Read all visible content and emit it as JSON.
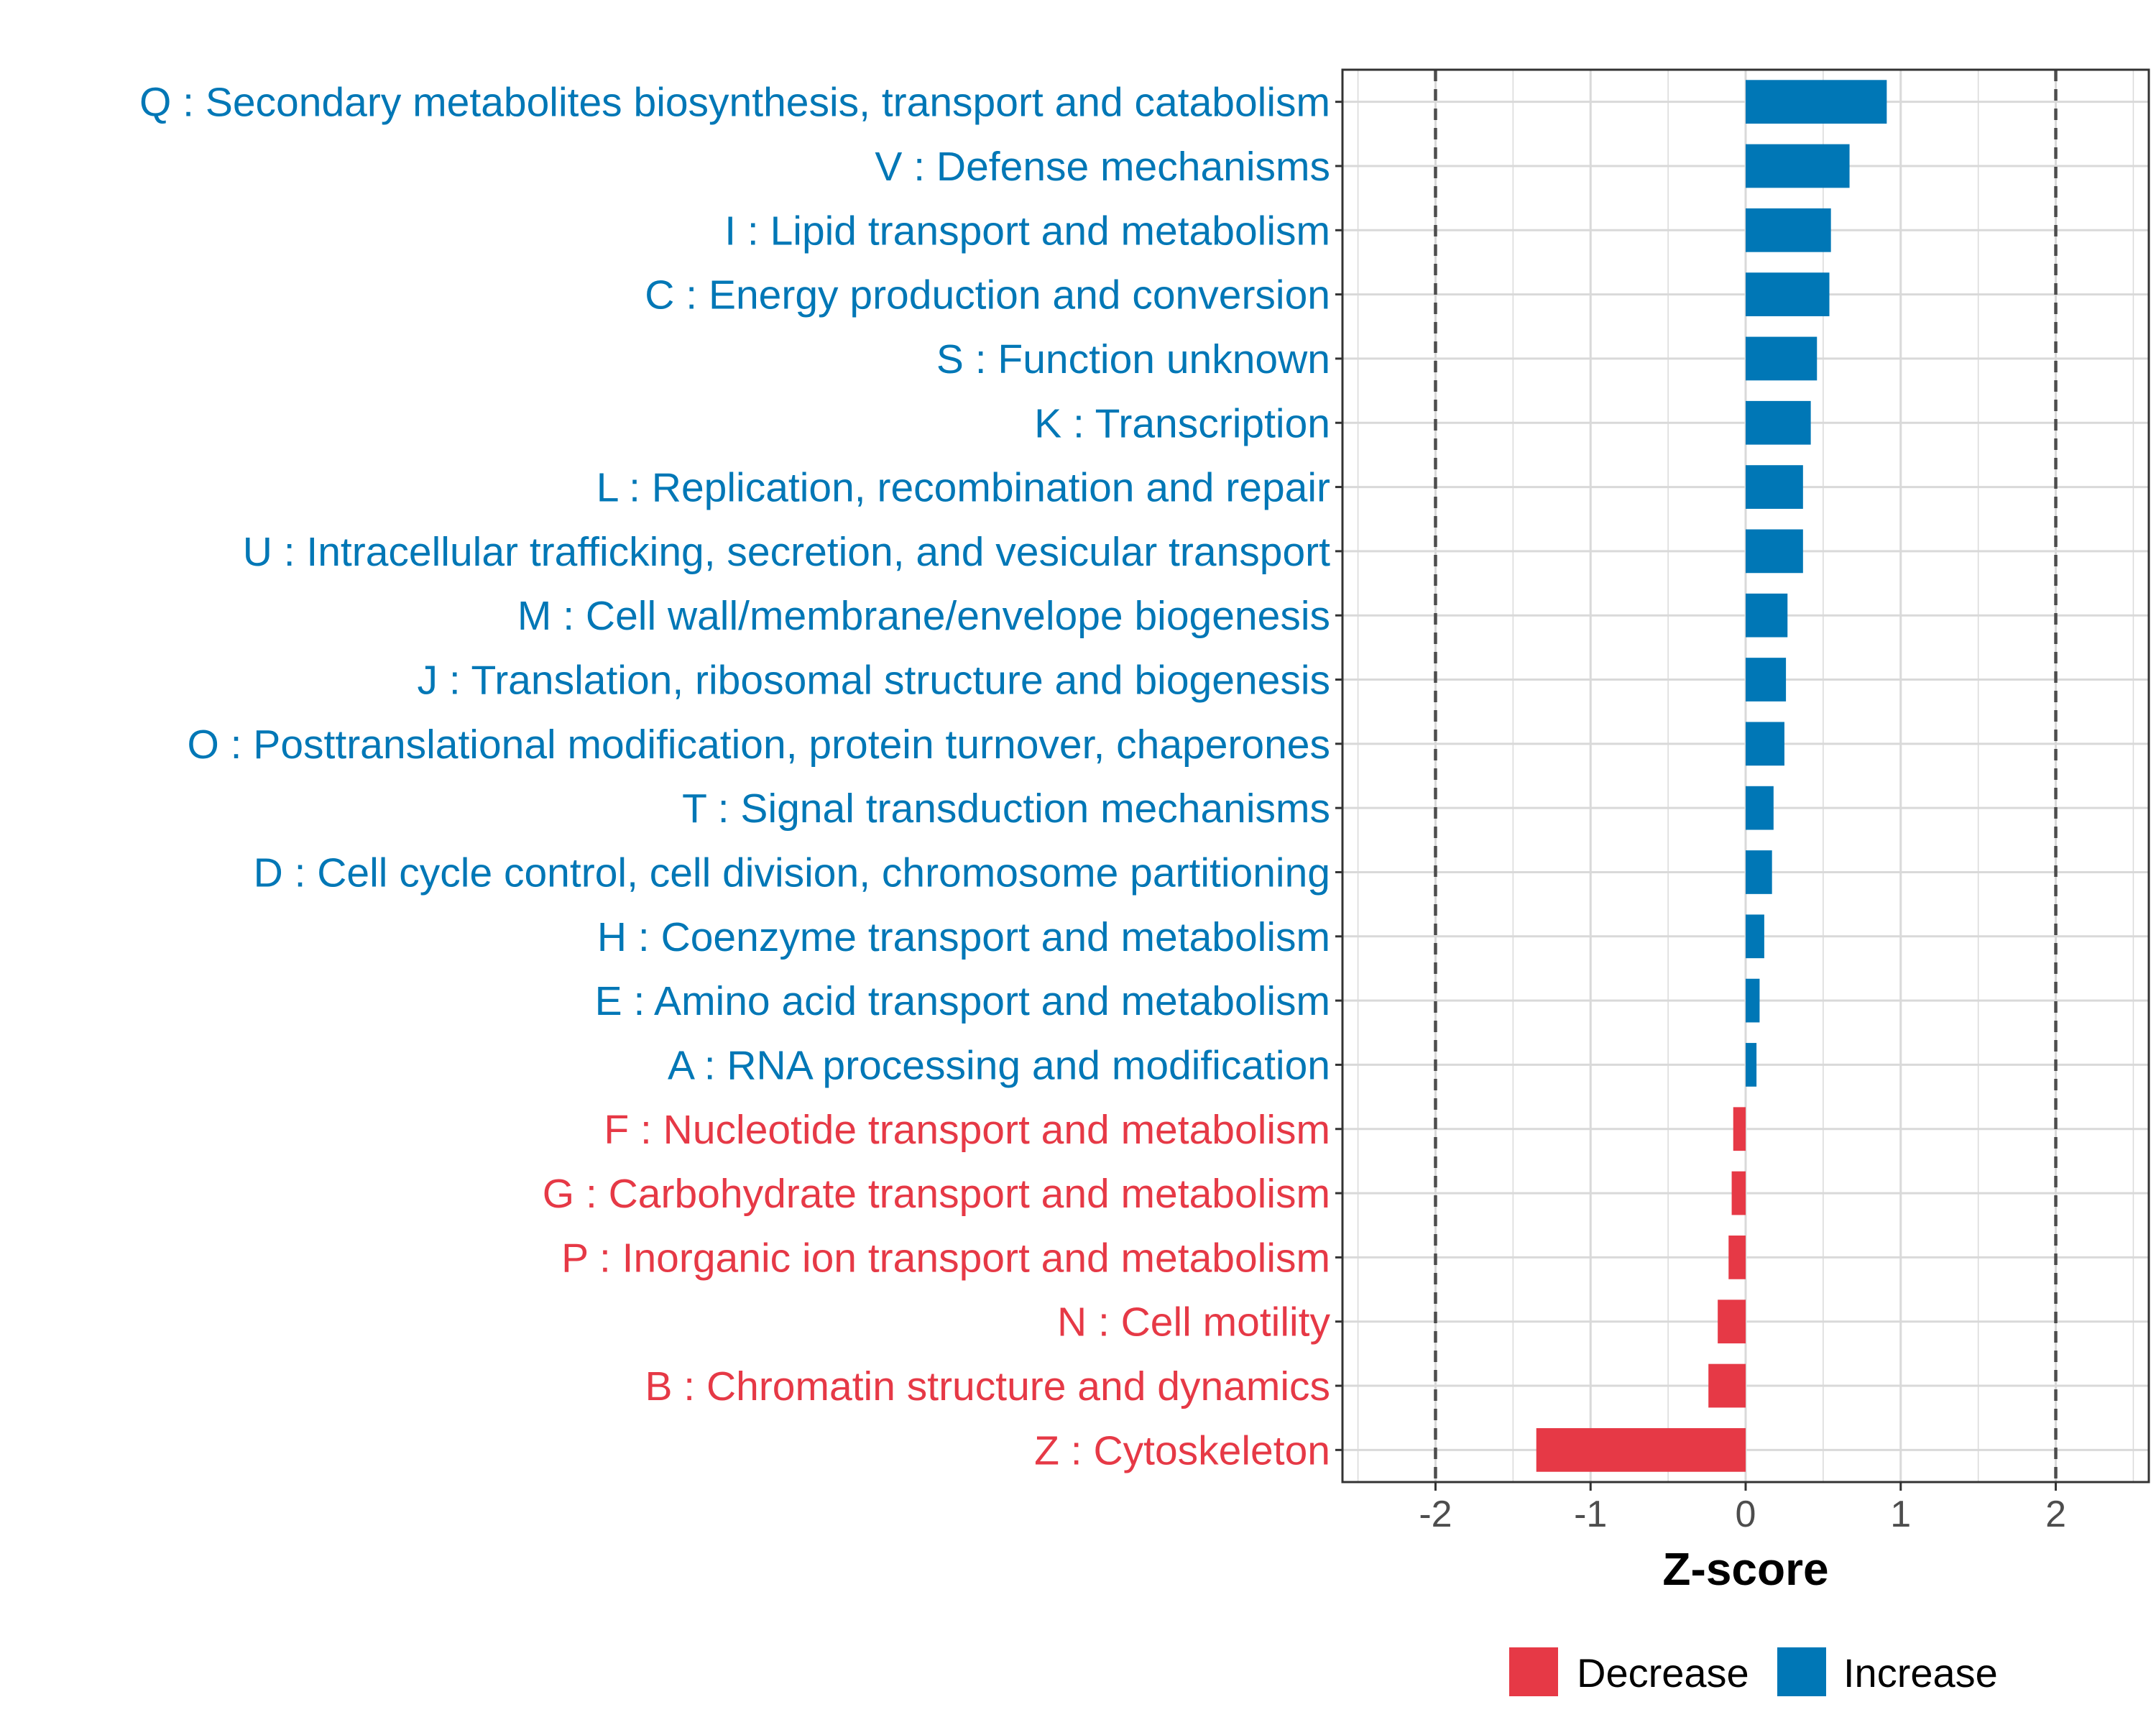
{
  "chart_data": {
    "type": "bar",
    "orientation": "horizontal",
    "title": "",
    "xlabel": "Z-score",
    "ylabel": "",
    "xlim": [
      -2.6,
      2.6
    ],
    "xticks": [
      -2,
      -1,
      0,
      1,
      2
    ],
    "xtick_labels": [
      "-2",
      "-1",
      "0",
      "1",
      "2"
    ],
    "reference_lines": [
      -2,
      2
    ],
    "grid": true,
    "colors": {
      "Decrease": "#E63946",
      "Increase": "#0077B6"
    },
    "legend": {
      "position": "bottom",
      "entries": [
        "Decrease",
        "Increase"
      ]
    },
    "categories": [
      "Q : Secondary metabolites biosynthesis, transport and catabolism",
      "V : Defense mechanisms",
      "I : Lipid transport and metabolism",
      "C : Energy production and conversion",
      "S : Function unknown",
      "K : Transcription",
      "L : Replication, recombination and repair",
      "U : Intracellular trafficking, secretion, and vesicular transport",
      "M : Cell wall/membrane/envelope biogenesis",
      "J : Translation, ribosomal structure and biogenesis",
      "O : Posttranslational modification, protein turnover, chaperones",
      "T : Signal transduction mechanisms",
      "D : Cell cycle control, cell division, chromosome partitioning",
      "H : Coenzyme transport and metabolism",
      "E : Amino acid transport and metabolism",
      "A : RNA processing and modification",
      "F : Nucleotide transport and metabolism",
      "G : Carbohydrate transport and metabolism",
      "P : Inorganic ion transport and metabolism",
      "N : Cell motility",
      "B : Chromatin structure and dynamics",
      "Z : Cytoskeleton"
    ],
    "values": [
      0.91,
      0.67,
      0.55,
      0.54,
      0.46,
      0.42,
      0.37,
      0.37,
      0.27,
      0.26,
      0.25,
      0.18,
      0.17,
      0.12,
      0.09,
      0.07,
      -0.08,
      -0.09,
      -0.11,
      -0.18,
      -0.24,
      -1.35
    ],
    "groups": [
      "Increase",
      "Increase",
      "Increase",
      "Increase",
      "Increase",
      "Increase",
      "Increase",
      "Increase",
      "Increase",
      "Increase",
      "Increase",
      "Increase",
      "Increase",
      "Increase",
      "Increase",
      "Increase",
      "Decrease",
      "Decrease",
      "Decrease",
      "Decrease",
      "Decrease",
      "Decrease"
    ]
  }
}
